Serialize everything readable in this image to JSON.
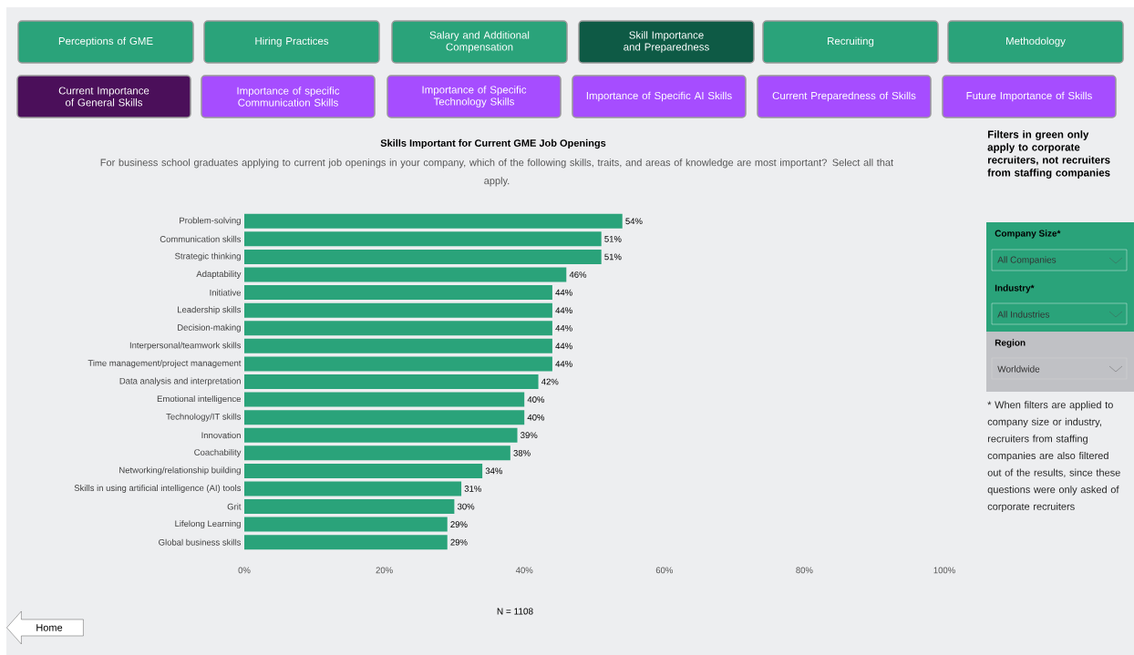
{
  "chart_data": {
    "type": "bar",
    "orientation": "horizontal",
    "title": "Skills Important for Current GME Job Openings",
    "subtitle": "For business school graduates applying to current job openings in your company, which of the following skills, traits, and areas of knowledge are most important? Select all that apply.",
    "categories": [
      "Problem-solving",
      "Communication skills",
      "Strategic thinking",
      "Adaptability",
      "Initiative",
      "Leadership skills",
      "Decision-making",
      "Interpersonal/teamwork skills",
      "Time management/project management",
      "Data analysis and interpretation",
      "Emotional intelligence",
      "Technology/IT skills",
      "Innovation",
      "Coachability",
      "Networking/relationship building",
      "Skills in using artificial intelligence (AI) tools",
      "Grit",
      "Lifelong Learning",
      "Global business skills"
    ],
    "values": [
      54,
      51,
      51,
      46,
      44,
      44,
      44,
      44,
      44,
      42,
      40,
      40,
      39,
      38,
      34,
      31,
      30,
      29,
      29
    ],
    "value_labels": [
      "54%",
      "51%",
      "51%",
      "46%",
      "44%",
      "44%",
      "44%",
      "44%",
      "44%",
      "42%",
      "40%",
      "40%",
      "39%",
      "38%",
      "34%",
      "31%",
      "30%",
      "29%",
      "29%"
    ],
    "color": "#2aa37a",
    "xlim": [
      0,
      100
    ],
    "xticks": [
      {
        "value": 0,
        "label": "0%"
      },
      {
        "value": 20,
        "label": "20%"
      },
      {
        "value": 40,
        "label": "40%"
      },
      {
        "value": 60,
        "label": "60%"
      },
      {
        "value": 80,
        "label": "80%"
      },
      {
        "value": 100,
        "label": "100%"
      }
    ],
    "grid": false,
    "annotations": [
      "Perceptions of GME",
      "Hiring Practices",
      "Salary and Additional Compensation",
      "Skill Importance and Preparedness",
      "Recruiting",
      "Methodology",
      "Current Importance of General Skills",
      "Importance of specific Communication Skills",
      "Importance of Specific Technology Skills",
      "Importance of Specific AI Skills",
      "Current Preparedness of Skills",
      "Future Importance of Skills",
      "Filters in green only apply to corporate recruiters, not recruiters from staffing companies",
      "Company Size*",
      "All Companies",
      "Industry*",
      "All Industries",
      "Region",
      "Worldwide",
      "* When filters are applied to company size or industry, recruiters from staffing companies are also filtered out of the results, since these questions were only asked of corporate recruiters",
      "N = 1108",
      "Home"
    ]
  }
}
